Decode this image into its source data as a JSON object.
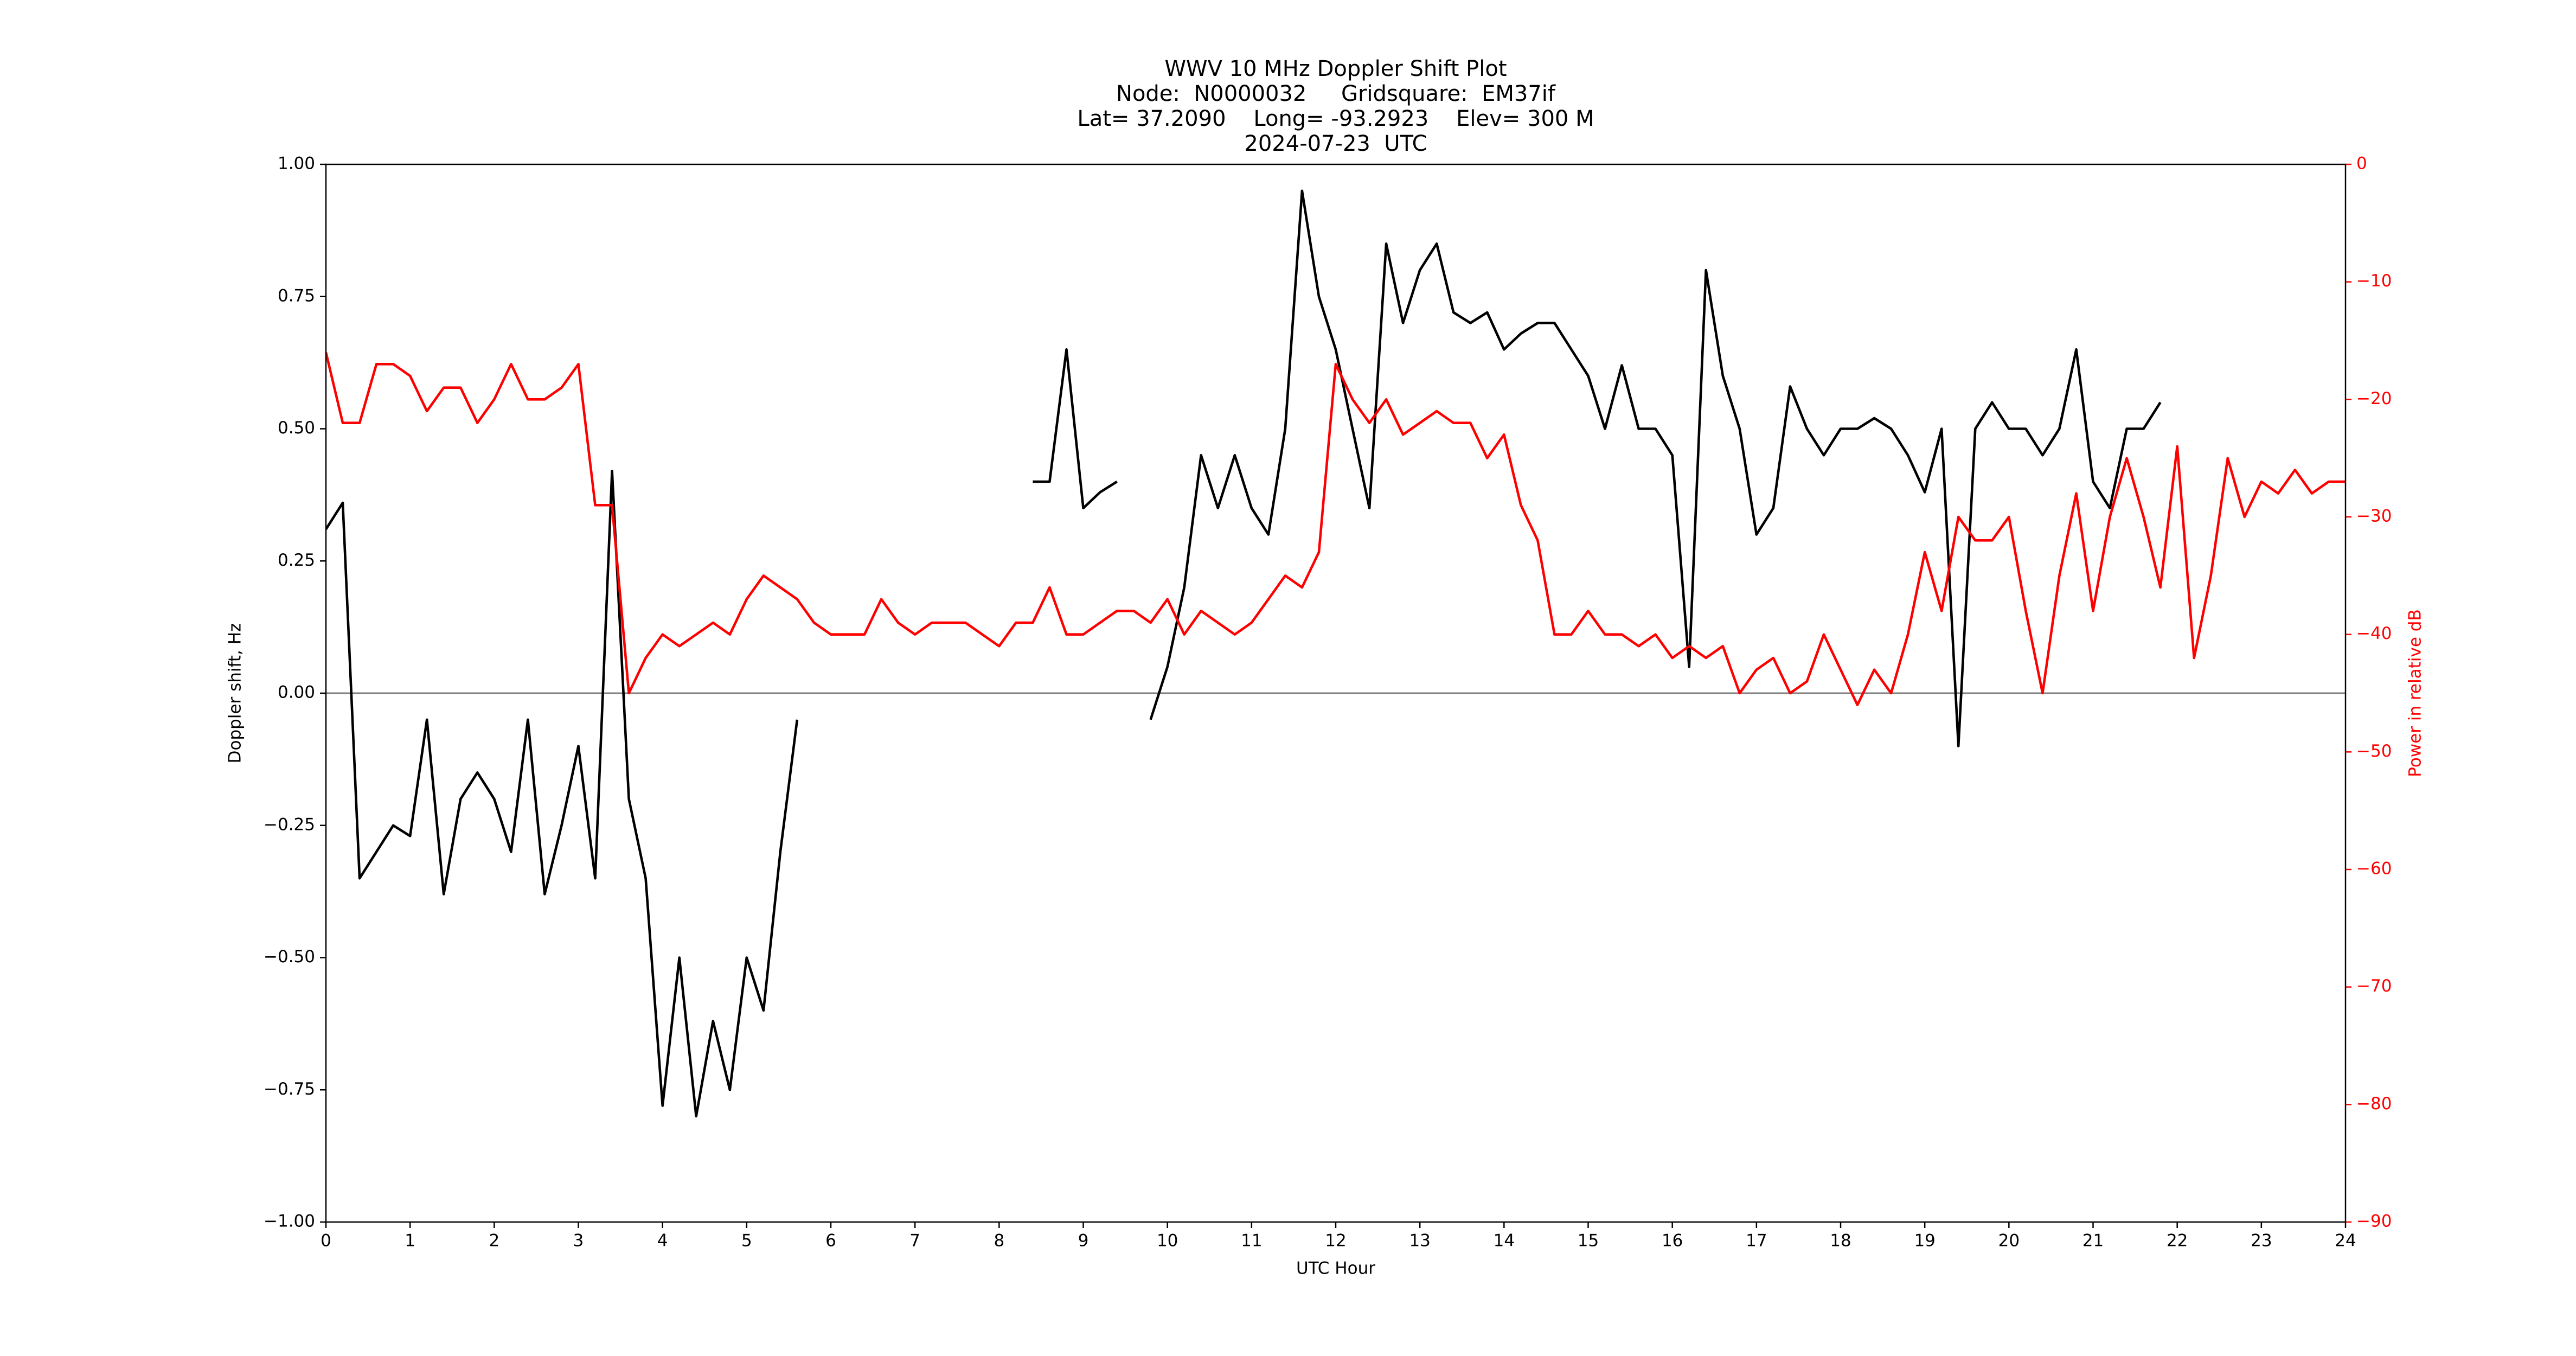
{
  "chart_data": {
    "type": "line",
    "title": "WWV 10 MHz Doppler Shift Plot",
    "subtitle": [
      "Node:  N0000032     Gridsquare:  EM37if",
      "Lat= 37.2090    Long= -93.2923    Elev= 300 M",
      "2024-07-23  UTC"
    ],
    "x_label": "UTC Hour",
    "y_label": "Doppler shift, Hz",
    "y2_label": "Power in relative dB",
    "x": [
      0,
      0.2,
      0.4,
      0.6,
      0.8,
      1,
      1.2,
      1.4,
      1.6,
      1.8,
      2,
      2.2,
      2.4,
      2.6,
      2.8,
      3,
      3.2,
      3.4,
      3.6,
      3.8,
      4,
      4.2,
      4.4,
      4.6,
      4.8,
      5,
      5.2,
      5.4,
      5.6,
      5.8,
      6,
      6.2,
      6.4,
      6.6,
      6.8,
      7,
      7.2,
      7.4,
      7.6,
      7.8,
      8,
      8.2,
      8.4,
      8.6,
      8.8,
      9,
      9.2,
      9.4,
      9.6,
      9.8,
      10,
      10.2,
      10.4,
      10.6,
      10.8,
      11,
      11.2,
      11.4,
      11.6,
      11.8,
      12,
      12.2,
      12.4,
      12.6,
      12.8,
      13,
      13.2,
      13.4,
      13.6,
      13.8,
      14,
      14.2,
      14.4,
      14.6,
      14.8,
      15,
      15.2,
      15.4,
      15.6,
      15.8,
      16,
      16.2,
      16.4,
      16.6,
      16.8,
      17,
      17.2,
      17.4,
      17.6,
      17.8,
      18,
      18.2,
      18.4,
      18.6,
      18.8,
      19,
      19.2,
      19.4,
      19.6,
      19.8,
      20,
      20.2,
      20.4,
      20.6,
      20.8,
      21,
      21.2,
      21.4,
      21.6,
      21.8,
      22,
      22.2,
      22.4,
      22.6,
      22.8,
      23,
      23.2,
      23.4,
      23.6,
      23.8,
      24
    ],
    "series": [
      {
        "name": "Doppler shift",
        "color": "#000000",
        "values": [
          0.31,
          0.36,
          -0.35,
          -0.3,
          -0.25,
          -0.27,
          -0.05,
          -0.38,
          -0.2,
          -0.15,
          -0.2,
          -0.3,
          -0.05,
          -0.38,
          -0.25,
          -0.1,
          -0.35,
          0.42,
          -0.2,
          -0.35,
          -0.78,
          -0.5,
          -0.8,
          -0.62,
          -0.75,
          -0.5,
          -0.6,
          -0.3,
          -0.05,
          null,
          null,
          null,
          null,
          null,
          null,
          null,
          null,
          null,
          null,
          null,
          null,
          null,
          0.4,
          0.4,
          0.65,
          0.35,
          0.38,
          0.4,
          null,
          -0.05,
          0.05,
          0.2,
          0.45,
          0.35,
          0.45,
          0.35,
          0.3,
          0.5,
          0.95,
          0.75,
          0.65,
          0.5,
          0.35,
          0.85,
          0.7,
          0.8,
          0.85,
          0.72,
          0.7,
          0.72,
          0.65,
          0.68,
          0.7,
          0.7,
          0.65,
          0.6,
          0.5,
          0.62,
          0.5,
          0.5,
          0.45,
          0.05,
          0.8,
          0.6,
          0.5,
          0.3,
          0.35,
          0.58,
          0.5,
          0.45,
          0.5,
          0.5,
          0.52,
          0.5,
          0.45,
          0.38,
          0.5,
          -0.1,
          0.5,
          0.55,
          0.5,
          0.5,
          0.45,
          0.5,
          0.65,
          0.4,
          0.35,
          0.5,
          0.5,
          0.55,
          null,
          null,
          null,
          null,
          null,
          null,
          null,
          null,
          null,
          null,
          null
        ]
      },
      {
        "name": "Power",
        "color": "#ff0000",
        "axis": "y2",
        "values": [
          -16,
          -22,
          -22,
          -17,
          -17,
          -18,
          -21,
          -19,
          -19,
          -22,
          -20,
          -17,
          -20,
          -20,
          -19,
          -17,
          -29,
          -29,
          -45,
          -42,
          -40,
          -41,
          -40,
          -39,
          -40,
          -37,
          -35,
          -36,
          -37,
          -39,
          -40,
          -40,
          -40,
          -37,
          -39,
          -40,
          -39,
          -39,
          -39,
          -40,
          -41,
          -39,
          -39,
          -36,
          -40,
          -40,
          -39,
          -38,
          -38,
          -39,
          -37,
          -40,
          -38,
          -39,
          -40,
          -39,
          -37,
          -35,
          -36,
          -33,
          -17,
          -20,
          -22,
          -20,
          -23,
          -22,
          -21,
          -22,
          -22,
          -25,
          -23,
          -29,
          -32,
          -40,
          -40,
          -38,
          -40,
          -40,
          -41,
          -40,
          -42,
          -41,
          -42,
          -41,
          -45,
          -43,
          -42,
          -45,
          -44,
          -40,
          -43,
          -46,
          -43,
          -45,
          -40,
          -33,
          -38,
          -30,
          -32,
          -32,
          -30,
          -38,
          -45,
          -35,
          -28,
          -38,
          -30,
          -25,
          -30,
          -36,
          -24,
          -42,
          -35,
          -25,
          -30,
          -27,
          -28,
          -26,
          -28,
          -27,
          -27
        ]
      }
    ],
    "xlim": [
      0,
      24
    ],
    "xticks": [
      0,
      1,
      2,
      3,
      4,
      5,
      6,
      7,
      8,
      9,
      10,
      11,
      12,
      13,
      14,
      15,
      16,
      17,
      18,
      19,
      20,
      21,
      22,
      23,
      24
    ],
    "ylim": [
      -1,
      1
    ],
    "yticks": [
      {
        "value": -1,
        "label": "−1.00"
      },
      {
        "value": -0.75,
        "label": "−0.75"
      },
      {
        "value": -0.5,
        "label": "−0.50"
      },
      {
        "value": -0.25,
        "label": "−0.25"
      },
      {
        "value": 0,
        "label": "0.00"
      },
      {
        "value": 0.25,
        "label": "0.25"
      },
      {
        "value": 0.5,
        "label": "0.50"
      },
      {
        "value": 0.75,
        "label": "0.75"
      },
      {
        "value": 1,
        "label": "1.00"
      }
    ],
    "y2lim": [
      -90,
      0
    ],
    "y2ticks": [
      {
        "value": -90,
        "label": "−90"
      },
      {
        "value": -80,
        "label": "−80"
      },
      {
        "value": -70,
        "label": "−70"
      },
      {
        "value": -60,
        "label": "−60"
      },
      {
        "value": -50,
        "label": "−50"
      },
      {
        "value": -40,
        "label": "−40"
      },
      {
        "value": -30,
        "label": "−30"
      },
      {
        "value": -20,
        "label": "−20"
      },
      {
        "value": -10,
        "label": "−10"
      },
      0
    ],
    "y2_color": "#ff0000",
    "reference_line": 0,
    "grid": false
  }
}
